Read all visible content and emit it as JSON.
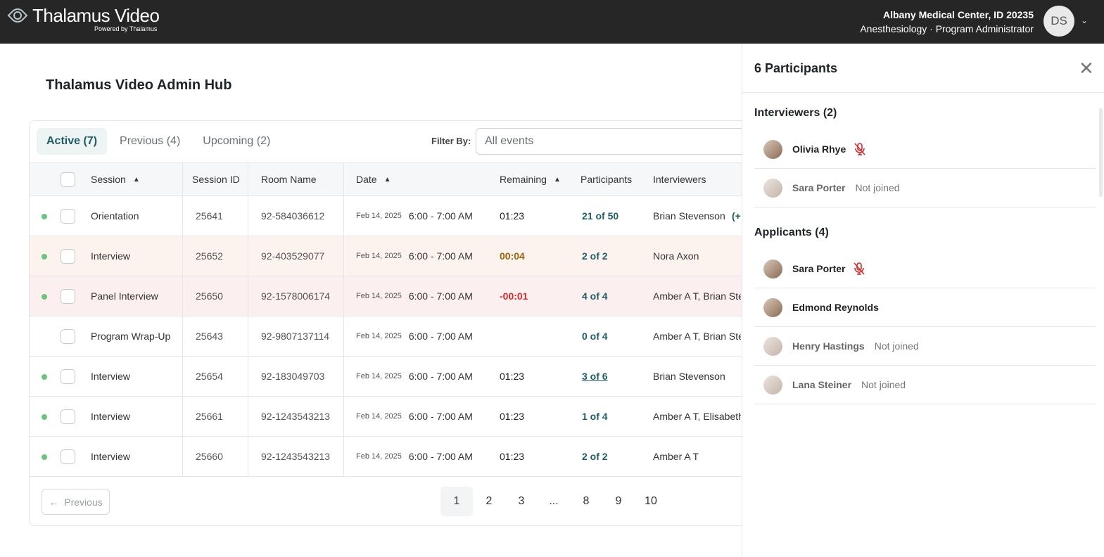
{
  "header": {
    "brand": "Thalamus Video",
    "powered": "Powered by Thalamus",
    "org": "Albany Medical Center, ID 20235",
    "role": "Anesthesiology · Program Administrator",
    "avatar": "DS"
  },
  "page_title": "Thalamus Video Admin Hub",
  "tabs": [
    {
      "label": "Active (7)"
    },
    {
      "label": "Previous (4)"
    },
    {
      "label": "Upcoming (2)"
    }
  ],
  "filter": {
    "label": "Filter By:",
    "value": "All events"
  },
  "columns": {
    "session": "Session",
    "session_id": "Session ID",
    "room": "Room Name",
    "date": "Date",
    "remaining": "Remaining",
    "participants": "Participants",
    "interviewers": "Interviewers"
  },
  "rows": [
    {
      "active": true,
      "session": "Orientation",
      "id": "25641",
      "room": "92-584036612",
      "date": "Feb 14, 2025",
      "time": "6:00 - 7:00 AM",
      "remaining": "01:23",
      "participants": "21 of 50",
      "interviewers": "Brian Stevenson",
      "extra": "(+",
      "status": "normal"
    },
    {
      "active": true,
      "session": "Interview",
      "id": "25652",
      "room": "92-403529077",
      "date": "Feb 14, 2025",
      "time": "6:00 - 7:00 AM",
      "remaining": "00:04",
      "participants": "2 of 2",
      "interviewers": "Nora Axon",
      "status": "warning"
    },
    {
      "active": true,
      "session": "Panel Interview",
      "id": "25650",
      "room": "92-1578006174",
      "date": "Feb 14, 2025",
      "time": "6:00 - 7:00 AM",
      "remaining": "-00:01",
      "participants": "4 of 4",
      "interviewers": "Amber A T, Brian Ste",
      "status": "overdue"
    },
    {
      "active": false,
      "session": "Program Wrap-Up",
      "id": "25643",
      "room": "92-9807137114",
      "date": "Feb 14, 2025",
      "time": "6:00 - 7:00 AM",
      "remaining": "",
      "participants": "0 of 4",
      "interviewers": "Amber A T, Brian Ste",
      "status": "normal"
    },
    {
      "active": true,
      "session": "Interview",
      "id": "25654",
      "room": "92-183049703",
      "date": "Feb 14, 2025",
      "time": "6:00 - 7:00 AM",
      "remaining": "01:23",
      "participants": "3 of 6",
      "interviewers": "Brian Stevenson",
      "status": "normal"
    },
    {
      "active": true,
      "session": "Interview",
      "id": "25661",
      "room": "92-1243543213",
      "date": "Feb 14, 2025",
      "time": "6:00 - 7:00 AM",
      "remaining": "01:23",
      "participants": "1 of 4",
      "interviewers": "Amber A T, Elisabeth",
      "status": "normal"
    },
    {
      "active": true,
      "session": "Interview",
      "id": "25660",
      "room": "92-1243543213",
      "date": "Feb 14, 2025",
      "time": "6:00 - 7:00 AM",
      "remaining": "01:23",
      "participants": "2 of 2",
      "interviewers": "Amber A T",
      "status": "normal"
    }
  ],
  "pagination": {
    "previous": "Previous",
    "pages": [
      "1",
      "2",
      "3",
      "...",
      "8",
      "9",
      "10"
    ],
    "current": "1"
  },
  "panel": {
    "title": "6 Participants",
    "interviewers_title": "Interviewers (2)",
    "interviewers": [
      {
        "name": "Olivia Rhye",
        "status": "",
        "muted": true
      },
      {
        "name": "Sara Porter",
        "status": "Not joined",
        "muted": false
      }
    ],
    "applicants_title": "Applicants (4)",
    "applicants": [
      {
        "name": "Sara Porter",
        "status": "",
        "muted": true
      },
      {
        "name": "Edmond Reynolds",
        "status": "",
        "muted": false
      },
      {
        "name": "Henry Hastings",
        "status": "Not joined",
        "muted": false
      },
      {
        "name": "Lana Steiner",
        "status": "Not joined",
        "muted": false
      }
    ]
  },
  "colors": {
    "accent": "#1d5e66",
    "warning": "#a0620a",
    "danger": "#d42a2a",
    "active_dot": "#6cc47d",
    "warning_row": "#fdf3ee",
    "overdue_row": "#fcefef"
  }
}
